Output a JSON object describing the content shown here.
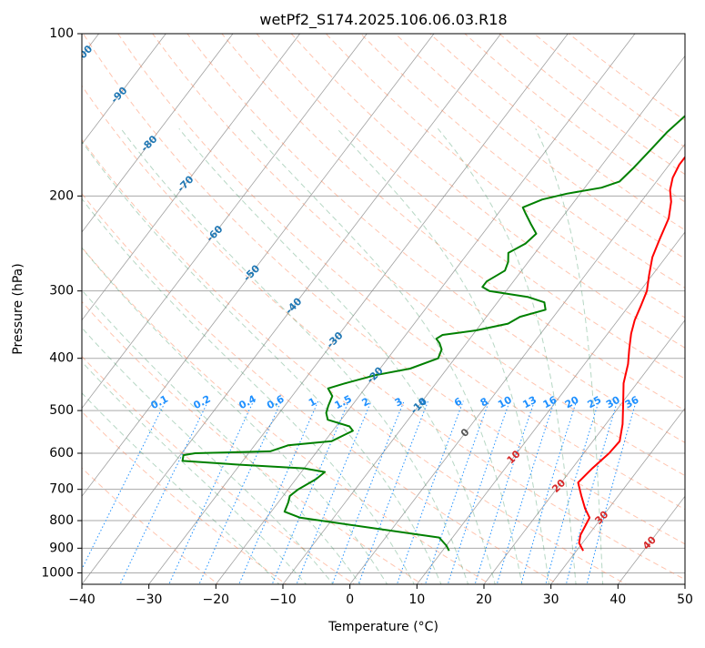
{
  "chart_data": {
    "type": "line",
    "title": "wetPf2_S174.2025.106.06.03.R18",
    "xlabel": "Temperature (°C)",
    "ylabel": "Pressure (hPa)",
    "xlim": [
      -40,
      50
    ],
    "ylim": [
      1050,
      100
    ],
    "y_scale": "log",
    "grid": true,
    "x_ticks": [
      -40,
      -30,
      -20,
      -10,
      0,
      10,
      20,
      30,
      40,
      50
    ],
    "y_ticks": [
      100,
      200,
      300,
      400,
      500,
      600,
      700,
      800,
      900,
      1000
    ],
    "x_tick_labels": [
      "−40",
      "−30",
      "−20",
      "−10",
      "0",
      "10",
      "20",
      "30",
      "40",
      "50"
    ],
    "y_tick_labels": [
      "100",
      "200",
      "300",
      "400",
      "500",
      "600",
      "700",
      "800",
      "900",
      "1000"
    ],
    "colors": {
      "temperature": "#ff0000",
      "dewpoint": "#008000",
      "dry_adiabat": "#ff7f50",
      "moist_adiabat": "#2e8b57",
      "mixing_ratio": "#1e90ff",
      "isotherm": "#888888",
      "isobar": "#aaaaaa",
      "isotherm_label_blue": "#1f77b4",
      "isotherm_label_red": "#d62728"
    },
    "series": [
      {
        "key": "temperature",
        "points": [
          [
            31.0,
            910
          ],
          [
            29.5,
            880
          ],
          [
            28.8,
            850
          ],
          [
            28.5,
            820
          ],
          [
            28.2,
            790
          ],
          [
            26.5,
            760
          ],
          [
            24.5,
            720
          ],
          [
            22.5,
            680
          ],
          [
            23.0,
            640
          ],
          [
            23.8,
            600
          ],
          [
            24.0,
            570
          ],
          [
            22.5,
            530
          ],
          [
            20.5,
            490
          ],
          [
            18.0,
            445
          ],
          [
            16.5,
            410
          ],
          [
            15.0,
            385
          ],
          [
            13.5,
            360
          ],
          [
            12.5,
            340
          ],
          [
            11.8,
            320
          ],
          [
            11.0,
            300
          ],
          [
            9.5,
            280
          ],
          [
            8.0,
            260
          ],
          [
            7.0,
            240
          ],
          [
            6.0,
            220
          ],
          [
            4.5,
            205
          ],
          [
            3.0,
            195
          ],
          [
            2.0,
            185
          ],
          [
            1.5,
            175
          ],
          [
            1.5,
            160
          ],
          [
            1.5,
            150
          ],
          [
            1.0,
            140
          ],
          [
            0.3,
            130
          ],
          [
            -0.5,
            120
          ],
          [
            0,
            110
          ],
          [
            1.5,
            105
          ],
          [
            3.0,
            100
          ]
        ]
      },
      {
        "key": "dewpoint",
        "points": [
          [
            11.0,
            910
          ],
          [
            10.0,
            890
          ],
          [
            8.0,
            860
          ],
          [
            -15.0,
            790
          ],
          [
            -18.0,
            770
          ],
          [
            -18.5,
            740
          ],
          [
            -19.0,
            720
          ],
          [
            -18.5,
            700
          ],
          [
            -17.0,
            670
          ],
          [
            -16.5,
            650
          ],
          [
            -20.0,
            640
          ],
          [
            -30.0,
            630
          ],
          [
            -39.0,
            620
          ],
          [
            -39.5,
            605
          ],
          [
            -38.0,
            600
          ],
          [
            -27.0,
            595
          ],
          [
            -25.0,
            580
          ],
          [
            -19.0,
            570
          ],
          [
            -17.0,
            545
          ],
          [
            -18.0,
            535
          ],
          [
            -22.0,
            520
          ],
          [
            -23.0,
            505
          ],
          [
            -23.5,
            490
          ],
          [
            -24.0,
            470
          ],
          [
            -25.5,
            455
          ],
          [
            -23.5,
            445
          ],
          [
            -20.0,
            430
          ],
          [
            -15.5,
            418
          ],
          [
            -12.5,
            400
          ],
          [
            -13.0,
            385
          ],
          [
            -14.0,
            375
          ],
          [
            -15.0,
            368
          ],
          [
            -14.5,
            362
          ],
          [
            -10.0,
            355
          ],
          [
            -6.0,
            345
          ],
          [
            -5.0,
            335
          ],
          [
            -2.0,
            325
          ],
          [
            -3.0,
            315
          ],
          [
            -6.0,
            308
          ],
          [
            -12.5,
            300
          ],
          [
            -14.0,
            295
          ],
          [
            -14.0,
            288
          ],
          [
            -12.5,
            275
          ],
          [
            -13.0,
            265
          ],
          [
            -14.0,
            255
          ],
          [
            -12.5,
            245
          ],
          [
            -12.0,
            235
          ],
          [
            -14.0,
            225
          ],
          [
            -16.0,
            215
          ],
          [
            -17.0,
            210
          ],
          [
            -15.0,
            203
          ],
          [
            -12.0,
            198
          ],
          [
            -7.5,
            193
          ],
          [
            -5.5,
            188
          ],
          [
            -5.0,
            178
          ],
          [
            -4.5,
            165
          ],
          [
            -4.0,
            152
          ],
          [
            -3.0,
            140
          ],
          [
            -2.5,
            130
          ],
          [
            -1.5,
            122
          ],
          [
            -1.0,
            115
          ],
          [
            -1.5,
            108
          ],
          [
            -0.5,
            104
          ],
          [
            0,
            100
          ]
        ]
      }
    ],
    "isotherm_labels": [
      {
        "t": -100,
        "text": "-100",
        "color": "blue"
      },
      {
        "t": -90,
        "text": "-90",
        "color": "blue"
      },
      {
        "t": -80,
        "text": "-80",
        "color": "blue"
      },
      {
        "t": -70,
        "text": "-70",
        "color": "blue"
      },
      {
        "t": -60,
        "text": "-60",
        "color": "blue"
      },
      {
        "t": -50,
        "text": "-50",
        "color": "blue"
      },
      {
        "t": -40,
        "text": "-40",
        "color": "blue"
      },
      {
        "t": -30,
        "text": "-30",
        "color": "blue"
      },
      {
        "t": -20,
        "text": "-20",
        "color": "blue"
      },
      {
        "t": -10,
        "text": "-10",
        "color": "blue"
      },
      {
        "t": 0,
        "text": "0",
        "color": "gray"
      },
      {
        "t": 10,
        "text": "10",
        "color": "red"
      },
      {
        "t": 20,
        "text": "20",
        "color": "red"
      },
      {
        "t": 30,
        "text": "30",
        "color": "red"
      },
      {
        "t": 40,
        "text": "40",
        "color": "red"
      }
    ],
    "mixing_ratio_labels": [
      "0.1",
      "0.2",
      "0.4",
      "0.6",
      "1",
      "1.5",
      "2",
      "3",
      "4",
      "6",
      "8",
      "10",
      "13",
      "16",
      "20",
      "25",
      "30",
      "36"
    ]
  }
}
